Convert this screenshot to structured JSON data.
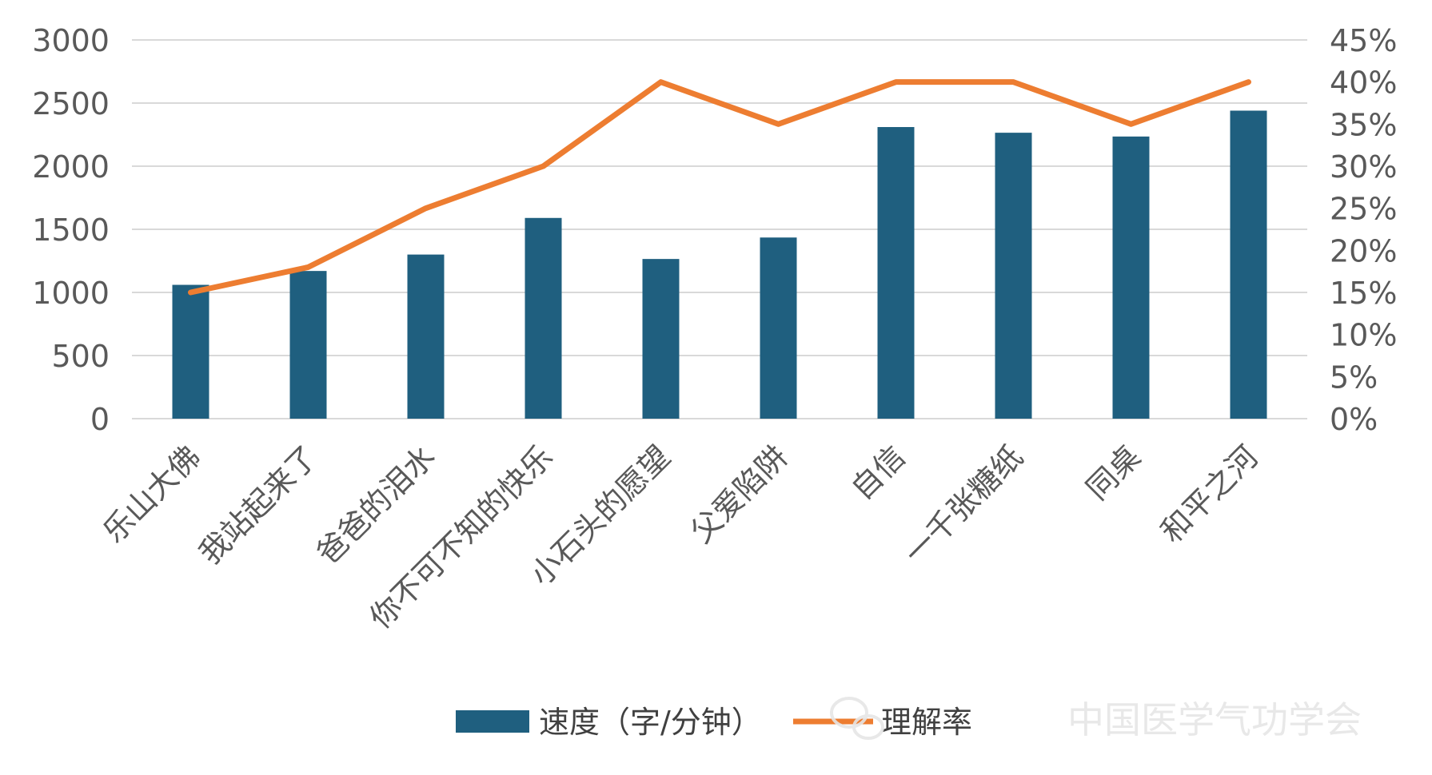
{
  "chart_data": {
    "type": "bar+line",
    "categories": [
      "乐山大佛",
      "我站起来了",
      "爸爸的泪水",
      "你不可不知的快乐",
      "小石头的愿望",
      "父爱陷阱",
      "自信",
      "一千张糖纸",
      "同桌",
      "和平之河"
    ],
    "series": [
      {
        "name": "速度（字/分钟）",
        "type": "bar",
        "axis": "left",
        "color": "#1f5f7f",
        "values": [
          1060,
          1170,
          1300,
          1590,
          1265,
          1435,
          2310,
          2265,
          2235,
          2440
        ]
      },
      {
        "name": "理解率",
        "type": "line",
        "axis": "right",
        "color": "#ed7d31",
        "values": [
          15,
          18,
          25,
          30,
          40,
          35,
          40,
          40,
          35,
          40
        ]
      }
    ],
    "y_left": {
      "min": 0,
      "max": 3000,
      "ticks": [
        "0",
        "500",
        "1000",
        "1500",
        "2000",
        "2500",
        "3000"
      ]
    },
    "y_right": {
      "min": 0,
      "max": 45,
      "ticks": [
        "0%",
        "5%",
        "10%",
        "15%",
        "20%",
        "25%",
        "30%",
        "35%",
        "40%",
        "45%"
      ]
    },
    "grid": true,
    "legend_position": "bottom"
  },
  "legend": {
    "bar_label": "速度（字/分钟）",
    "line_label": "理解率"
  },
  "watermark": {
    "text": "中国医学气功学会",
    "icon": "wechat-icon"
  }
}
